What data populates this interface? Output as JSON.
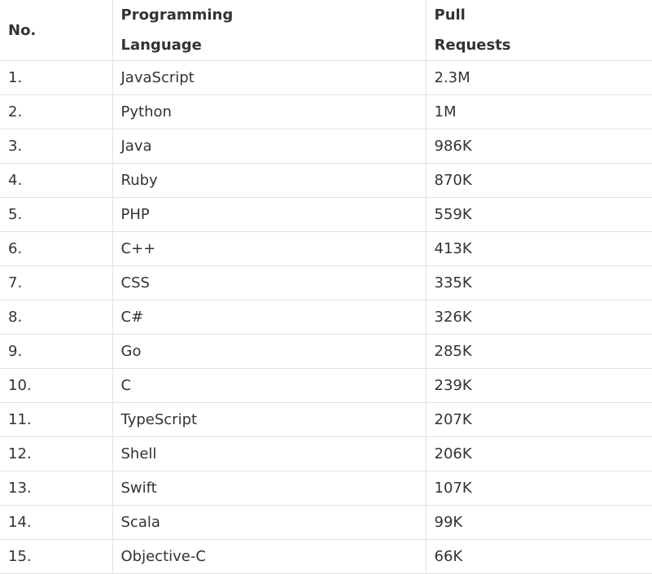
{
  "table": {
    "headers": {
      "no": "No.",
      "language_line1": "Programming",
      "language_line2": "Language",
      "pulls_line1": "Pull",
      "pulls_line2": "Requests"
    },
    "rows": [
      {
        "no": "1.",
        "language": "JavaScript",
        "pulls": "2.3M"
      },
      {
        "no": "2.",
        "language": "Python",
        "pulls": "1M"
      },
      {
        "no": "3.",
        "language": "Java",
        "pulls": "986K"
      },
      {
        "no": "4.",
        "language": "Ruby",
        "pulls": "870K"
      },
      {
        "no": "5.",
        "language": "PHP",
        "pulls": "559K"
      },
      {
        "no": "6.",
        "language": "C++",
        "pulls": "413K"
      },
      {
        "no": "7.",
        "language": "CSS",
        "pulls": "335K"
      },
      {
        "no": "8.",
        "language": "C#",
        "pulls": "326K"
      },
      {
        "no": "9.",
        "language": "Go",
        "pulls": "285K"
      },
      {
        "no": "10.",
        "language": "C",
        "pulls": "239K"
      },
      {
        "no": "11.",
        "language": "TypeScript",
        "pulls": "207K"
      },
      {
        "no": "12.",
        "language": "Shell",
        "pulls": "206K"
      },
      {
        "no": "13.",
        "language": "Swift",
        "pulls": "107K"
      },
      {
        "no": "14.",
        "language": "Scala",
        "pulls": "99K"
      },
      {
        "no": "15.",
        "language": "Objective-C",
        "pulls": "66K"
      }
    ]
  }
}
